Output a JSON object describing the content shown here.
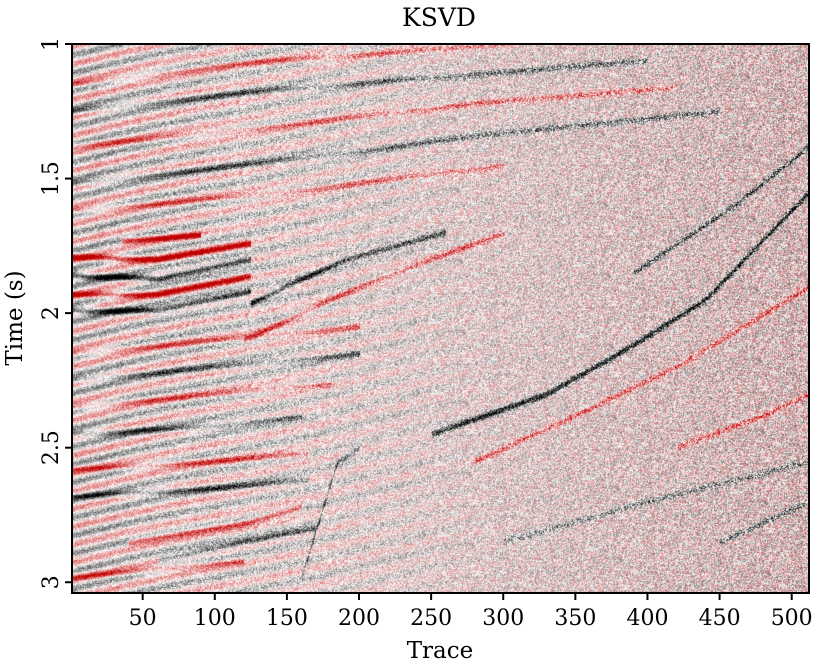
{
  "chart_data": {
    "type": "heatmap",
    "title": "KSVD",
    "xlabel": "Trace",
    "ylabel": "Time (s)",
    "xlim": [
      1,
      512
    ],
    "ylim": [
      1,
      3.04
    ],
    "x_ticks": [
      50,
      100,
      150,
      200,
      250,
      300,
      350,
      400,
      450,
      500
    ],
    "x_tick_labels": [
      "50",
      "100",
      "150",
      "200",
      "250",
      "300",
      "350",
      "400",
      "450",
      "500"
    ],
    "y_ticks": [
      1,
      1.5,
      2,
      2.5,
      3
    ],
    "y_tick_labels": [
      "1",
      "1.5",
      "2",
      "2.5",
      "3"
    ],
    "y_axis_inverted": true,
    "colormap": [
      "#000000",
      "#ffffff",
      "#c00000"
    ],
    "colormap_description": "seismic amplitude: black negative, white zero, red positive",
    "events": [
      {
        "x": [
          1,
          60,
          125
        ],
        "y": [
          1.79,
          1.8,
          1.74
        ],
        "amp": 1.0
      },
      {
        "x": [
          1,
          60,
          125
        ],
        "y": [
          1.86,
          1.87,
          1.8
        ],
        "amp": -1.0
      },
      {
        "x": [
          1,
          60,
          125
        ],
        "y": [
          1.93,
          1.93,
          1.86
        ],
        "amp": 0.9
      },
      {
        "x": [
          1,
          60,
          125
        ],
        "y": [
          1.99,
          1.99,
          1.92
        ],
        "amp": -0.9
      },
      {
        "x": [
          35,
          90
        ],
        "y": [
          1.73,
          1.71
        ],
        "amp": 1.0
      },
      {
        "x": [
          125,
          190,
          260
        ],
        "y": [
          1.96,
          1.8,
          1.7
        ],
        "amp": -0.8
      },
      {
        "x": [
          120,
          200,
          300
        ],
        "y": [
          2.1,
          1.9,
          1.7
        ],
        "amp": 0.6
      },
      {
        "x": [
          0,
          120,
          250,
          380
        ],
        "y": [
          1.15,
          1.07,
          1.02,
          0.96
        ],
        "amp": 0.5
      },
      {
        "x": [
          0,
          120,
          260,
          400
        ],
        "y": [
          1.25,
          1.18,
          1.12,
          1.06
        ],
        "amp": -0.5
      },
      {
        "x": [
          0,
          150,
          280,
          420
        ],
        "y": [
          1.38,
          1.3,
          1.22,
          1.16
        ],
        "amp": 0.5
      },
      {
        "x": [
          0,
          150,
          300,
          450
        ],
        "y": [
          1.52,
          1.43,
          1.33,
          1.25
        ],
        "amp": -0.5
      },
      {
        "x": [
          0,
          150,
          300
        ],
        "y": [
          1.62,
          1.55,
          1.45
        ],
        "amp": 0.5
      },
      {
        "x": [
          0,
          100,
          200
        ],
        "y": [
          2.15,
          2.1,
          2.05
        ],
        "amp": 0.5
      },
      {
        "x": [
          0,
          100,
          200
        ],
        "y": [
          2.25,
          2.2,
          2.15
        ],
        "amp": -0.5
      },
      {
        "x": [
          0,
          100,
          180
        ],
        "y": [
          2.35,
          2.3,
          2.26
        ],
        "amp": 0.5
      },
      {
        "x": [
          0,
          100,
          160
        ],
        "y": [
          2.45,
          2.42,
          2.38
        ],
        "amp": -0.6
      },
      {
        "x": [
          0,
          100,
          165
        ],
        "y": [
          2.58,
          2.55,
          2.52
        ],
        "amp": 0.6
      },
      {
        "x": [
          0,
          100,
          165
        ],
        "y": [
          2.68,
          2.65,
          2.62
        ],
        "amp": -0.6
      },
      {
        "x": [
          40,
          120,
          160
        ],
        "y": [
          2.85,
          2.78,
          2.72
        ],
        "amp": 0.8
      },
      {
        "x": [
          60,
          120,
          170
        ],
        "y": [
          2.92,
          2.85,
          2.8
        ],
        "amp": -0.7
      },
      {
        "x": [
          0,
          60,
          120
        ],
        "y": [
          2.98,
          2.95,
          2.92
        ],
        "amp": 0.6
      },
      {
        "x": [
          160,
          185,
          200
        ],
        "y": [
          2.98,
          2.55,
          2.5
        ],
        "amp": -0.6
      },
      {
        "x": [
          250,
          330,
          380,
          440,
          512
        ],
        "y": [
          2.45,
          2.3,
          2.15,
          1.95,
          1.55
        ],
        "amp": -0.9
      },
      {
        "x": [
          280,
          350,
          420,
          512
        ],
        "y": [
          2.55,
          2.38,
          2.2,
          1.9
        ],
        "amp": 0.6
      },
      {
        "x": [
          390,
          460,
          512
        ],
        "y": [
          1.85,
          1.6,
          1.38
        ],
        "amp": -0.6
      },
      {
        "x": [
          420,
          480,
          512
        ],
        "y": [
          2.5,
          2.38,
          2.3
        ],
        "amp": 0.6
      },
      {
        "x": [
          300,
          400,
          512
        ],
        "y": [
          2.85,
          2.7,
          2.55
        ],
        "amp": -0.4
      },
      {
        "x": [
          450,
          512
        ],
        "y": [
          2.85,
          2.7
        ],
        "amp": -0.5
      }
    ],
    "grid": false,
    "legend": "none"
  }
}
